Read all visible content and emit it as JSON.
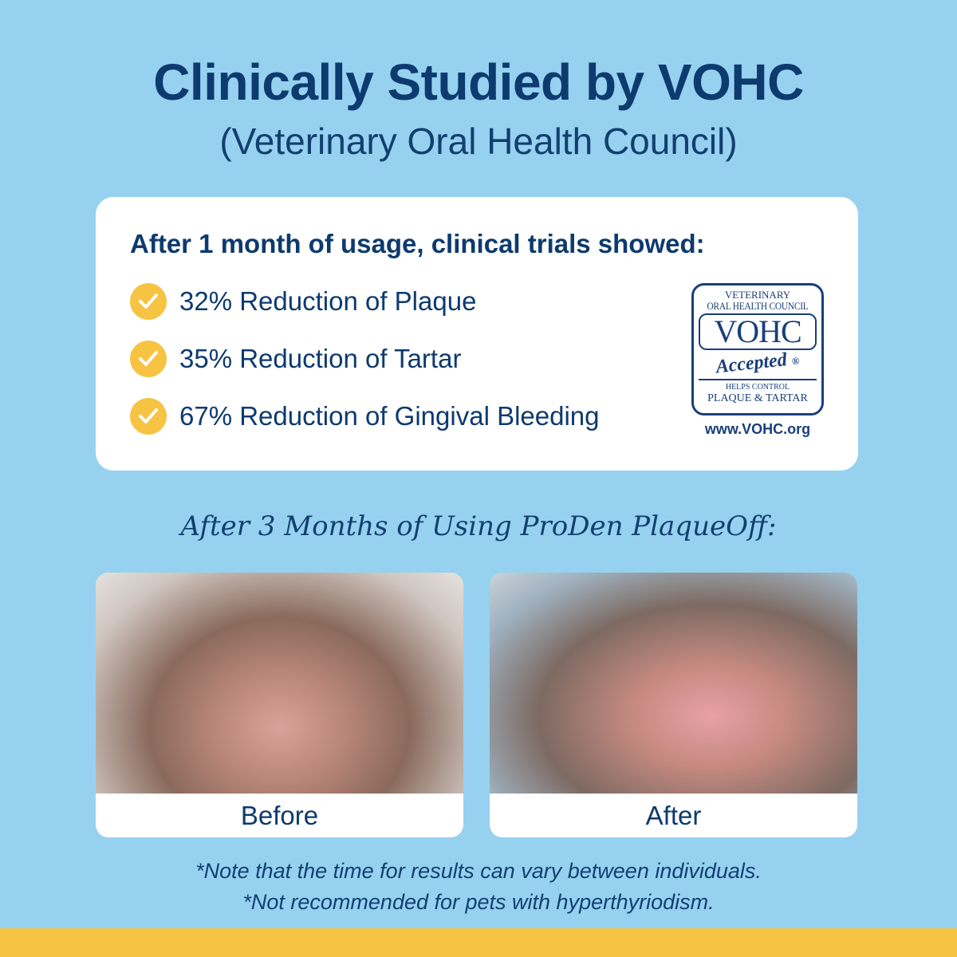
{
  "header": {
    "title": "Clinically Studied by VOHC",
    "subtitle": "(Veterinary Oral Health Council)"
  },
  "results_card": {
    "heading": "After 1 month of usage, clinical trials showed:",
    "items": [
      {
        "label": "32% Reduction of Plaque",
        "icon": "check-circle-icon"
      },
      {
        "label": "35% Reduction of Tartar",
        "icon": "check-circle-icon"
      },
      {
        "label": "67% Reduction of Gingival Bleeding",
        "icon": "check-circle-icon"
      }
    ],
    "seal": {
      "line1": "VETERINARY",
      "line2": "ORAL HEALTH COUNCIL",
      "acronym": "VOHC",
      "accepted": "Accepted",
      "registered": "®",
      "helps": "HELPS CONTROL",
      "claim": "PLAQUE & TARTAR",
      "url": "www.VOHC.org"
    }
  },
  "comparison": {
    "heading": "After 3 Months of Using ProDen PlaqueOff:",
    "before_label": "Before",
    "after_label": "After"
  },
  "notes": [
    "*Note that the time for results can vary between individuals.",
    "*Not recommended for pets with hyperthyriodism."
  ],
  "colors": {
    "background": "#96d2ef",
    "navy": "#0d3a6f",
    "accent_yellow": "#f6c343"
  }
}
